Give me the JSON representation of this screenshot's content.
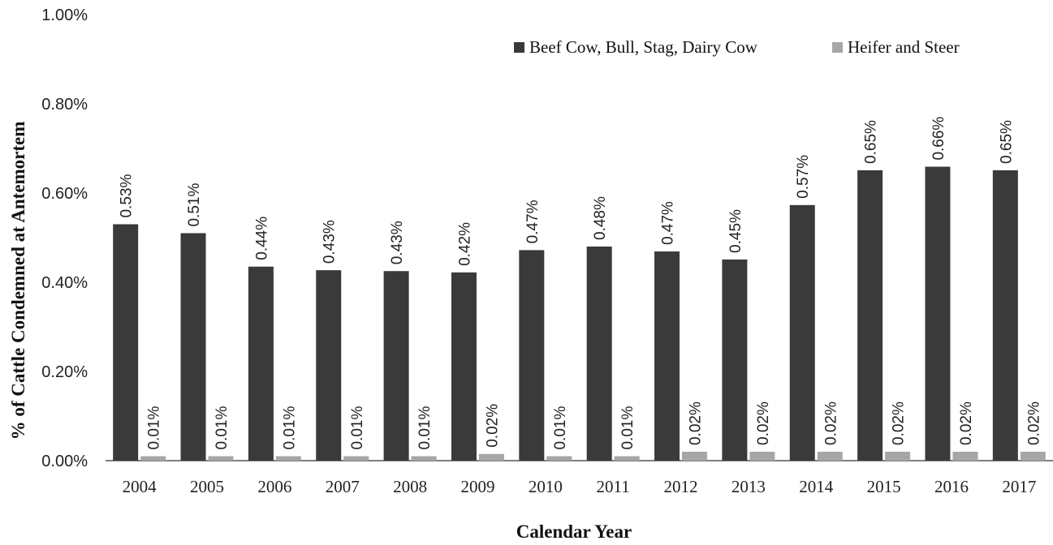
{
  "chart_data": {
    "type": "bar",
    "title": "",
    "xlabel": "Calendar Year",
    "ylabel": "% of Cattle Condemned at Antemortem",
    "ylim": [
      0,
      1.0
    ],
    "yticks": [
      "0.00%",
      "0.20%",
      "0.40%",
      "0.60%",
      "0.80%",
      "1.00%"
    ],
    "categories": [
      "2004",
      "2005",
      "2006",
      "2007",
      "2008",
      "2009",
      "2010",
      "2011",
      "2012",
      "2013",
      "2014",
      "2015",
      "2016",
      "2017"
    ],
    "legend_position": "top-right",
    "grid": false,
    "series": [
      {
        "name": "Beef Cow, Bull, Stag, Dairy Cow",
        "color": "#3a3a3a",
        "values": [
          0.53,
          0.51,
          0.435,
          0.427,
          0.425,
          0.422,
          0.472,
          0.48,
          0.469,
          0.451,
          0.573,
          0.651,
          0.659,
          0.651
        ],
        "labels": [
          "0.53%",
          "0.51%",
          "0.44%",
          "0.43%",
          "0.43%",
          "0.42%",
          "0.47%",
          "0.48%",
          "0.47%",
          "0.45%",
          "0.57%",
          "0.65%",
          "0.66%",
          "0.65%"
        ]
      },
      {
        "name": "Heifer and Steer",
        "color": "#a6a6a6",
        "values": [
          0.01,
          0.01,
          0.01,
          0.01,
          0.01,
          0.015,
          0.01,
          0.01,
          0.02,
          0.02,
          0.02,
          0.02,
          0.02,
          0.02
        ],
        "labels": [
          "0.01%",
          "0.01%",
          "0.01%",
          "0.01%",
          "0.01%",
          "0.02%",
          "0.01%",
          "0.01%",
          "0.02%",
          "0.02%",
          "0.02%",
          "0.02%",
          "0.02%",
          "0.02%"
        ]
      }
    ]
  }
}
